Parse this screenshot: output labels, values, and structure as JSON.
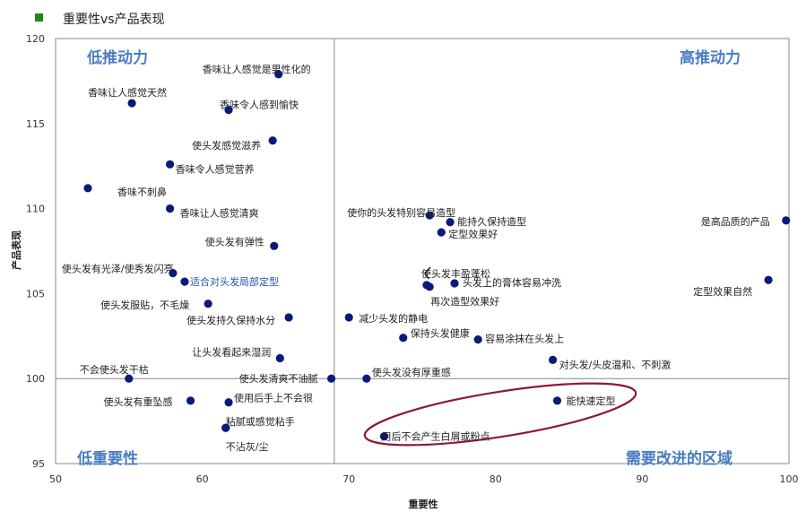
{
  "chart_data": {
    "type": "scatter",
    "title": "重要性vs产品表现",
    "legend_color": "#1a8a1a",
    "xlabel": "重要性",
    "ylabel": "产品表现",
    "xlim": [
      50,
      100
    ],
    "ylim": [
      95,
      120
    ],
    "xticks": [
      50,
      60,
      70,
      80,
      90,
      100
    ],
    "yticks": [
      95,
      100,
      105,
      110,
      115,
      120
    ],
    "divider_x": 69,
    "divider_y": 100,
    "quadrants": {
      "top_left": "低推动力",
      "top_right": "高推动力",
      "bottom_left": "低重要性",
      "bottom_right": "需要改进的区域"
    },
    "marker_color": "#0a1a7a",
    "highlight_color": "#8b1a3a",
    "points": [
      {
        "x": 65.2,
        "y": 117.9,
        "label": "香味让人感觉是男性化的"
      },
      {
        "x": 55.2,
        "y": 116.2,
        "label": "香味让人感觉天然"
      },
      {
        "x": 61.8,
        "y": 115.8,
        "label": "香味令人感到愉快"
      },
      {
        "x": 64.8,
        "y": 114.0,
        "label": "使头发感觉滋养"
      },
      {
        "x": 57.8,
        "y": 112.6,
        "label": "香味令人感觉营养"
      },
      {
        "x": 52.2,
        "y": 111.2,
        "label": "香味不刺鼻"
      },
      {
        "x": 57.8,
        "y": 110.0,
        "label": "香味让人感觉清爽"
      },
      {
        "x": 64.9,
        "y": 107.8,
        "label": "使头发有弹性"
      },
      {
        "x": 58.0,
        "y": 106.2,
        "label": "使头发有光泽/使秀发闪亮"
      },
      {
        "x": 58.8,
        "y": 105.7,
        "label": "适合对头发局部定型",
        "blue": true
      },
      {
        "x": 60.4,
        "y": 104.4,
        "label": "使头发服贴，不毛燥"
      },
      {
        "x": 65.9,
        "y": 103.6,
        "label": "使头发持久保持水分"
      },
      {
        "x": 65.3,
        "y": 101.2,
        "label": "让头发看起来湿润"
      },
      {
        "x": 55.0,
        "y": 100.0,
        "label": "不会使头发干枯"
      },
      {
        "x": 68.8,
        "y": 100.0,
        "label": "使头发清爽不油腻"
      },
      {
        "x": 59.2,
        "y": 98.7,
        "label": "使头发有重坠感"
      },
      {
        "x": 61.8,
        "y": 98.6,
        "label": "使用后手上不会很"
      },
      {
        "x": 61.6,
        "y": 97.1,
        "label": "粘腻或感觉粘手"
      },
      {
        "x": 61.6,
        "y": 97.1,
        "label": "不沾灰/尘"
      },
      {
        "x": 75.5,
        "y": 109.6,
        "label": "使你的头发特别容易造型"
      },
      {
        "x": 76.9,
        "y": 109.2,
        "label": "能持久保持造型"
      },
      {
        "x": 76.3,
        "y": 108.6,
        "label": "定型效果好"
      },
      {
        "x": 75.3,
        "y": 105.5,
        "label": "使头发丰盈蓬松"
      },
      {
        "x": 77.2,
        "y": 105.6,
        "label": "头发上的膏体容易冲洗"
      },
      {
        "x": 75.5,
        "y": 105.4,
        "label": "再次造型效果好"
      },
      {
        "x": 70.0,
        "y": 103.6,
        "label": "减少头发的静电"
      },
      {
        "x": 73.7,
        "y": 102.4,
        "label": "保持头发健康"
      },
      {
        "x": 78.8,
        "y": 102.3,
        "label": "容易涂抹在头发上"
      },
      {
        "x": 71.2,
        "y": 100.0,
        "label": "使头发没有厚重感"
      },
      {
        "x": 83.9,
        "y": 101.1,
        "label": "对头发/头皮温和、不刺激"
      },
      {
        "x": 99.8,
        "y": 109.3,
        "label": "是高品质的产品"
      },
      {
        "x": 98.6,
        "y": 105.8,
        "label": "定型效果自然"
      },
      {
        "x": 84.2,
        "y": 98.7,
        "label": "能快速定型"
      },
      {
        "x": 72.4,
        "y": 96.6,
        "label": "用后不会产生白屑或粉点"
      }
    ]
  }
}
